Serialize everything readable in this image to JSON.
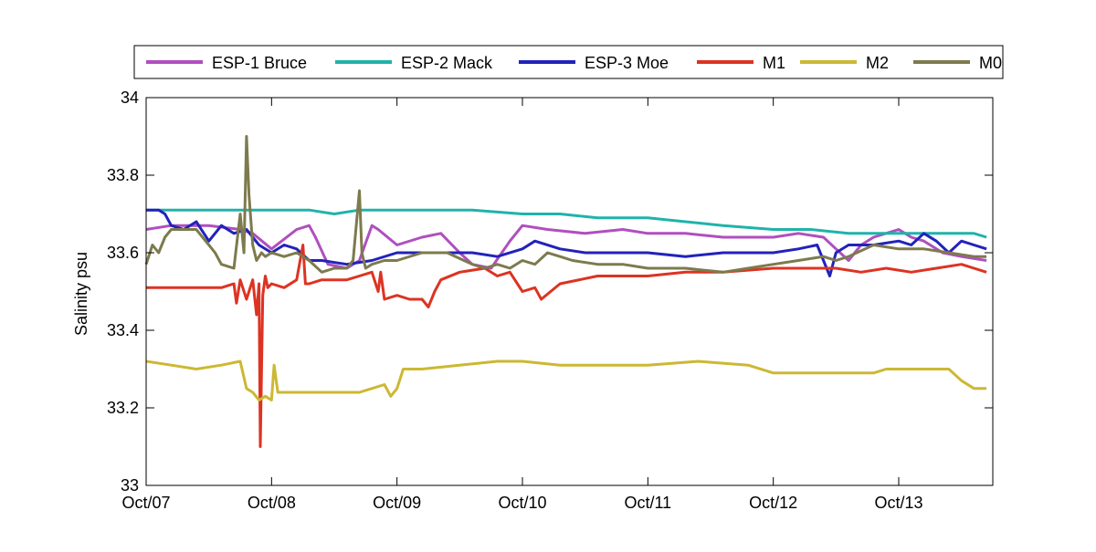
{
  "chart_data": {
    "type": "line",
    "title": "",
    "xlabel": "",
    "ylabel": "Salinity psu",
    "xlim": [
      0,
      6.75
    ],
    "ylim": [
      33,
      34
    ],
    "grid": false,
    "legend_position": "top",
    "x_ticks": [
      {
        "value": 0,
        "label": "Oct/07"
      },
      {
        "value": 1,
        "label": "Oct/08"
      },
      {
        "value": 2,
        "label": "Oct/09"
      },
      {
        "value": 3,
        "label": "Oct/10"
      },
      {
        "value": 4,
        "label": "Oct/11"
      },
      {
        "value": 5,
        "label": "Oct/12"
      },
      {
        "value": 6,
        "label": "Oct/13"
      }
    ],
    "y_ticks": [
      {
        "value": 33,
        "label": "33"
      },
      {
        "value": 33.2,
        "label": "33.2"
      },
      {
        "value": 33.4,
        "label": "33.4"
      },
      {
        "value": 33.6,
        "label": "33.6"
      },
      {
        "value": 33.8,
        "label": "33.8"
      },
      {
        "value": 34,
        "label": "34"
      }
    ],
    "series": [
      {
        "name": "ESP-1 Bruce",
        "color": "#b04fbf",
        "x": [
          0,
          0.2,
          0.5,
          0.75,
          0.85,
          1.0,
          1.2,
          1.3,
          1.35,
          1.45,
          1.6,
          1.7,
          1.8,
          1.85,
          2.0,
          2.2,
          2.35,
          2.5,
          2.6,
          2.75,
          2.9,
          3.0,
          3.2,
          3.5,
          3.8,
          4.0,
          4.3,
          4.6,
          5.0,
          5.2,
          5.4,
          5.5,
          5.6,
          5.7,
          5.8,
          6.0,
          6.1,
          6.2,
          6.35,
          6.5,
          6.7
        ],
        "y": [
          33.66,
          33.67,
          33.67,
          33.66,
          33.65,
          33.61,
          33.66,
          33.67,
          33.64,
          33.57,
          33.56,
          33.58,
          33.67,
          33.66,
          33.62,
          33.64,
          33.65,
          33.6,
          33.57,
          33.56,
          33.63,
          33.67,
          33.66,
          33.65,
          33.66,
          33.65,
          33.65,
          33.64,
          33.64,
          33.65,
          33.64,
          33.61,
          33.58,
          33.62,
          33.64,
          33.66,
          33.64,
          33.63,
          33.6,
          33.59,
          33.58
        ]
      },
      {
        "name": "ESP-2 Mack",
        "color": "#1fb3aa",
        "x": [
          0,
          0.5,
          1.0,
          1.3,
          1.5,
          1.7,
          2.0,
          2.3,
          2.6,
          3.0,
          3.3,
          3.6,
          4.0,
          4.3,
          4.6,
          5.0,
          5.3,
          5.6,
          6.0,
          6.3,
          6.6,
          6.7
        ],
        "y": [
          33.71,
          33.71,
          33.71,
          33.71,
          33.7,
          33.71,
          33.71,
          33.71,
          33.71,
          33.7,
          33.7,
          33.69,
          33.69,
          33.68,
          33.67,
          33.66,
          33.66,
          33.65,
          33.65,
          33.65,
          33.65,
          33.64
        ]
      },
      {
        "name": "ESP-3 Moe",
        "color": "#2222bb",
        "x": [
          0,
          0.05,
          0.1,
          0.15,
          0.2,
          0.3,
          0.4,
          0.5,
          0.6,
          0.7,
          0.8,
          0.9,
          1.0,
          1.1,
          1.2,
          1.3,
          1.4,
          1.6,
          1.8,
          2.0,
          2.2,
          2.4,
          2.6,
          2.8,
          3.0,
          3.1,
          3.3,
          3.5,
          3.7,
          4.0,
          4.3,
          4.6,
          5.0,
          5.2,
          5.35,
          5.45,
          5.5,
          5.6,
          5.8,
          6.0,
          6.1,
          6.2,
          6.3,
          6.4,
          6.5,
          6.6,
          6.7
        ],
        "y": [
          33.71,
          33.71,
          33.71,
          33.7,
          33.67,
          33.66,
          33.68,
          33.63,
          33.67,
          33.65,
          33.66,
          33.62,
          33.6,
          33.62,
          33.61,
          33.58,
          33.58,
          33.57,
          33.58,
          33.6,
          33.6,
          33.6,
          33.6,
          33.59,
          33.61,
          33.63,
          33.61,
          33.6,
          33.6,
          33.6,
          33.59,
          33.6,
          33.6,
          33.61,
          33.62,
          33.54,
          33.6,
          33.62,
          33.62,
          33.63,
          33.62,
          33.65,
          33.63,
          33.6,
          33.63,
          33.62,
          33.61
        ]
      },
      {
        "name": "M1",
        "color": "#dd3322",
        "x": [
          0,
          0.3,
          0.6,
          0.7,
          0.72,
          0.75,
          0.8,
          0.85,
          0.88,
          0.9,
          0.91,
          0.93,
          0.95,
          0.97,
          1.0,
          1.1,
          1.2,
          1.25,
          1.27,
          1.3,
          1.4,
          1.6,
          1.7,
          1.8,
          1.85,
          1.87,
          1.9,
          2.0,
          2.1,
          2.2,
          2.25,
          2.3,
          2.35,
          2.5,
          2.7,
          2.8,
          2.9,
          3.0,
          3.1,
          3.15,
          3.3,
          3.6,
          4.0,
          4.3,
          4.6,
          5.0,
          5.3,
          5.5,
          5.7,
          5.9,
          6.1,
          6.3,
          6.5,
          6.6,
          6.7
        ],
        "y": [
          33.51,
          33.51,
          33.51,
          33.52,
          33.47,
          33.53,
          33.48,
          33.53,
          33.44,
          33.52,
          33.1,
          33.49,
          33.54,
          33.51,
          33.52,
          33.51,
          33.53,
          33.62,
          33.52,
          33.52,
          33.53,
          33.53,
          33.54,
          33.55,
          33.5,
          33.55,
          33.48,
          33.49,
          33.48,
          33.48,
          33.46,
          33.5,
          33.53,
          33.55,
          33.56,
          33.54,
          33.55,
          33.5,
          33.51,
          33.48,
          33.52,
          33.54,
          33.54,
          33.55,
          33.55,
          33.56,
          33.56,
          33.56,
          33.55,
          33.56,
          33.55,
          33.56,
          33.57,
          33.56,
          33.55
        ]
      },
      {
        "name": "M2",
        "color": "#ccb833",
        "x": [
          0,
          0.2,
          0.4,
          0.6,
          0.75,
          0.8,
          0.85,
          0.9,
          0.95,
          1.0,
          1.02,
          1.05,
          1.1,
          1.3,
          1.5,
          1.7,
          1.8,
          1.9,
          1.95,
          2.0,
          2.05,
          2.2,
          2.5,
          2.8,
          3.0,
          3.3,
          3.6,
          4.0,
          4.4,
          4.8,
          5.0,
          5.3,
          5.6,
          5.8,
          5.9,
          6.0,
          6.2,
          6.4,
          6.5,
          6.6,
          6.7
        ],
        "y": [
          33.32,
          33.31,
          33.3,
          33.31,
          33.32,
          33.25,
          33.24,
          33.22,
          33.23,
          33.22,
          33.31,
          33.24,
          33.24,
          33.24,
          33.24,
          33.24,
          33.25,
          33.26,
          33.23,
          33.25,
          33.3,
          33.3,
          33.31,
          33.32,
          33.32,
          33.31,
          33.31,
          33.31,
          33.32,
          33.31,
          33.29,
          33.29,
          33.29,
          33.29,
          33.3,
          33.3,
          33.3,
          33.3,
          33.27,
          33.25,
          33.25
        ]
      },
      {
        "name": "M0",
        "color": "#7d7a4d",
        "x": [
          0,
          0.05,
          0.1,
          0.15,
          0.2,
          0.3,
          0.4,
          0.5,
          0.55,
          0.6,
          0.7,
          0.75,
          0.78,
          0.8,
          0.82,
          0.85,
          0.88,
          0.92,
          0.95,
          1.0,
          1.1,
          1.2,
          1.3,
          1.4,
          1.5,
          1.6,
          1.65,
          1.7,
          1.72,
          1.75,
          1.8,
          1.9,
          2.0,
          2.2,
          2.4,
          2.6,
          2.7,
          2.8,
          2.9,
          3.0,
          3.1,
          3.2,
          3.3,
          3.4,
          3.6,
          3.8,
          4.0,
          4.3,
          4.6,
          4.8,
          5.0,
          5.2,
          5.4,
          5.5,
          5.6,
          5.8,
          6.0,
          6.2,
          6.4,
          6.6,
          6.7
        ],
        "y": [
          33.57,
          33.62,
          33.6,
          33.64,
          33.66,
          33.66,
          33.66,
          33.62,
          33.6,
          33.57,
          33.56,
          33.7,
          33.6,
          33.9,
          33.75,
          33.62,
          33.58,
          33.6,
          33.59,
          33.6,
          33.59,
          33.6,
          33.58,
          33.55,
          33.56,
          33.56,
          33.58,
          33.76,
          33.6,
          33.56,
          33.57,
          33.58,
          33.58,
          33.6,
          33.6,
          33.57,
          33.56,
          33.57,
          33.56,
          33.58,
          33.57,
          33.6,
          33.59,
          33.58,
          33.57,
          33.57,
          33.56,
          33.56,
          33.55,
          33.56,
          33.57,
          33.58,
          33.59,
          33.58,
          33.59,
          33.62,
          33.61,
          33.61,
          33.6,
          33.59,
          33.59
        ]
      }
    ]
  }
}
